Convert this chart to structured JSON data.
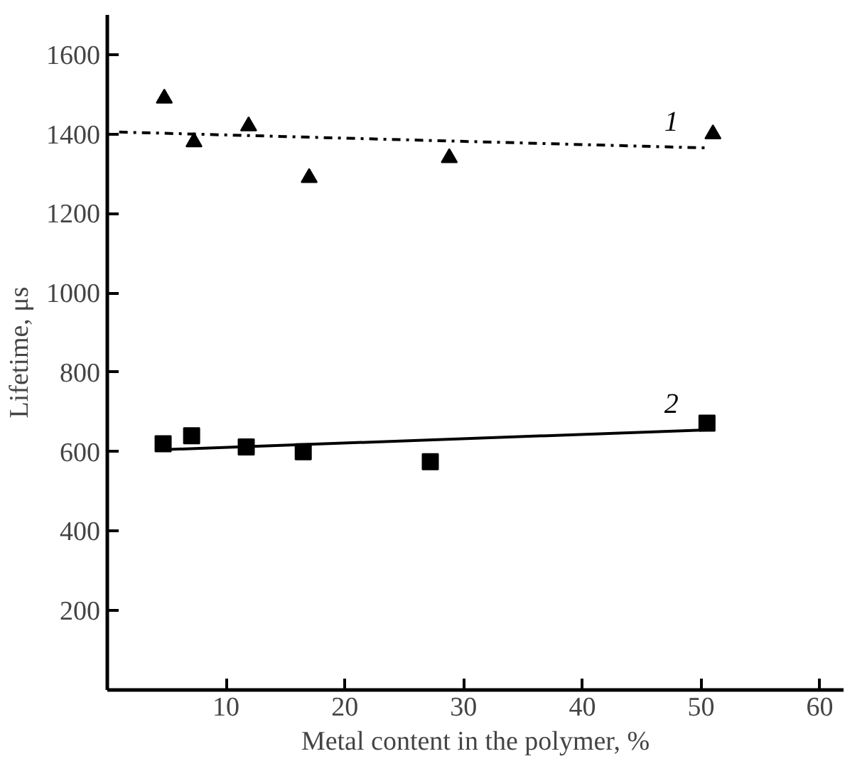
{
  "chart_data": {
    "type": "scatter",
    "xlabel": "Metal content in the polymer, %",
    "ylabel": "Lifetime, μs",
    "xlim": [
      0,
      62
    ],
    "ylim": [
      0,
      1700
    ],
    "xticks": [
      10,
      20,
      30,
      40,
      50,
      60
    ],
    "yticks": [
      200,
      400,
      600,
      800,
      1000,
      1200,
      1400,
      1600
    ],
    "grid": false,
    "series": [
      {
        "marker": "triangle",
        "color": "#000000",
        "x": [
          4.8,
          7.3,
          11.9,
          17.0,
          28.8,
          51.0
        ],
        "values": [
          1490,
          1380,
          1420,
          1290,
          1340,
          1400
        ]
      },
      {
        "type": "line",
        "name": "1",
        "line_style": "dashdot",
        "marker": "none",
        "color": "#000000",
        "x": [
          1,
          50.5
        ],
        "values": [
          1405,
          1365
        ]
      },
      {
        "marker": "square",
        "color": "#000000",
        "x": [
          4.7,
          7.1,
          11.7,
          16.5,
          27.2,
          50.5
        ],
        "values": [
          620,
          640,
          612,
          600,
          575,
          672
        ]
      },
      {
        "type": "line",
        "name": "2",
        "line_style": "solid",
        "marker": "none",
        "color": "#000000",
        "x": [
          4.5,
          50.5
        ],
        "values": [
          605,
          655
        ]
      }
    ]
  }
}
